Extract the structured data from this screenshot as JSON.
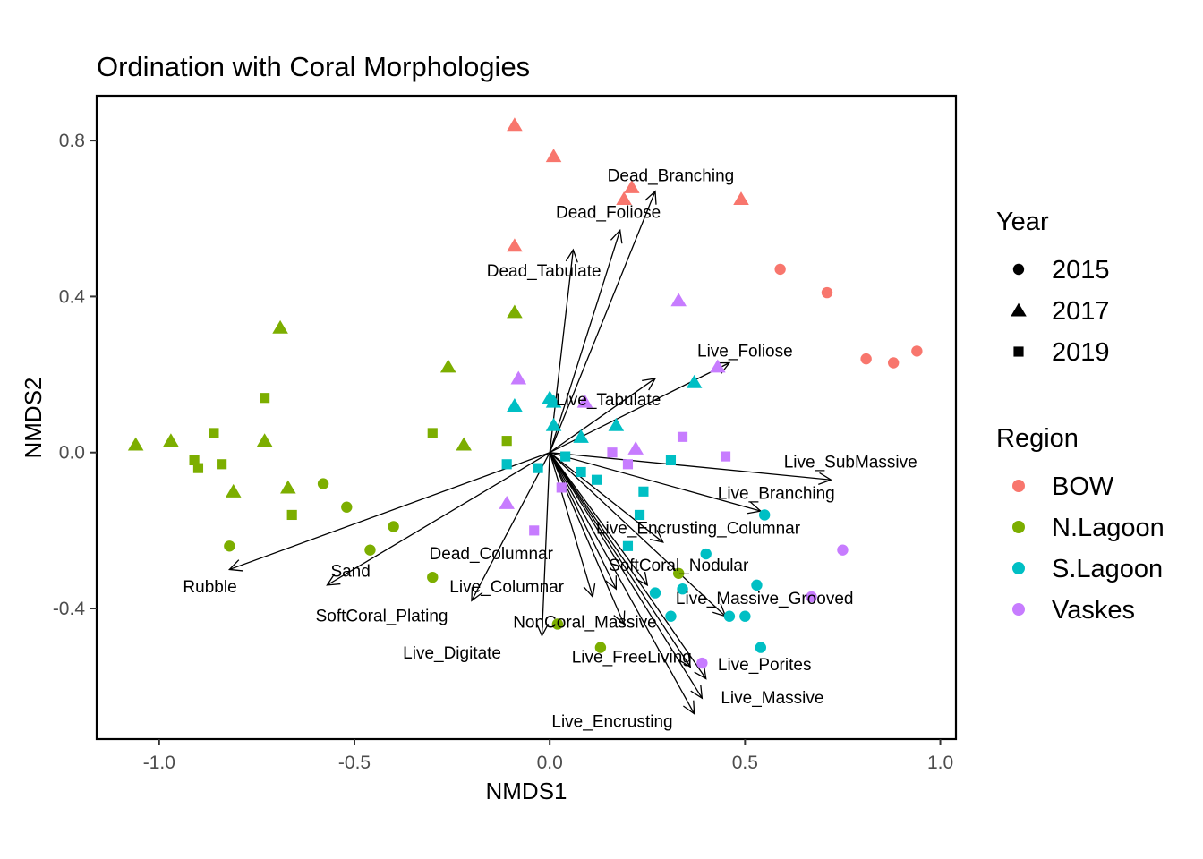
{
  "chart_data": {
    "type": "scatter",
    "title": "Ordination with Coral Morphologies",
    "xlabel": "NMDS1",
    "ylabel": "NMDS2",
    "xlim": [
      -1.16,
      1.04
    ],
    "ylim": [
      -0.735,
      0.915
    ],
    "xticks": [
      -1.0,
      -0.5,
      0.0,
      0.5,
      1.0
    ],
    "xtick_labels": [
      "-1.0",
      "-0.5",
      "0.0",
      "0.5",
      "1.0"
    ],
    "yticks": [
      -0.4,
      0.0,
      0.4,
      0.8
    ],
    "ytick_labels": [
      "-0.4",
      "0.0",
      "0.4",
      "0.8"
    ],
    "grid": false,
    "legend_placement": "right",
    "legend": {
      "year": {
        "title": "Year",
        "items": [
          {
            "label": "2015",
            "shape": "circle"
          },
          {
            "label": "2017",
            "shape": "triangle"
          },
          {
            "label": "2019",
            "shape": "square"
          }
        ]
      },
      "region": {
        "title": "Region",
        "items": [
          {
            "label": "BOW",
            "color": "#F8766D"
          },
          {
            "label": "N.Lagoon",
            "color": "#7CAE00"
          },
          {
            "label": "S.Lagoon",
            "color": "#00BFC4"
          },
          {
            "label": "Vaskes",
            "color": "#C77CFF"
          }
        ]
      }
    },
    "points": [
      {
        "x": 0.59,
        "y": 0.47,
        "year": "2015",
        "region": "BOW"
      },
      {
        "x": 0.71,
        "y": 0.41,
        "year": "2015",
        "region": "BOW"
      },
      {
        "x": 0.81,
        "y": 0.24,
        "year": "2015",
        "region": "BOW"
      },
      {
        "x": 0.88,
        "y": 0.23,
        "year": "2015",
        "region": "BOW"
      },
      {
        "x": 0.94,
        "y": 0.26,
        "year": "2015",
        "region": "BOW"
      },
      {
        "x": -0.09,
        "y": 0.84,
        "year": "2017",
        "region": "BOW"
      },
      {
        "x": 0.01,
        "y": 0.76,
        "year": "2017",
        "region": "BOW"
      },
      {
        "x": 0.21,
        "y": 0.68,
        "year": "2017",
        "region": "BOW"
      },
      {
        "x": 0.19,
        "y": 0.65,
        "year": "2017",
        "region": "BOW"
      },
      {
        "x": 0.49,
        "y": 0.65,
        "year": "2017",
        "region": "BOW"
      },
      {
        "x": -0.09,
        "y": 0.53,
        "year": "2017",
        "region": "BOW"
      },
      {
        "x": -0.58,
        "y": -0.08,
        "year": "2015",
        "region": "N.Lagoon"
      },
      {
        "x": -0.52,
        "y": -0.14,
        "year": "2015",
        "region": "N.Lagoon"
      },
      {
        "x": -0.4,
        "y": -0.19,
        "year": "2015",
        "region": "N.Lagoon"
      },
      {
        "x": -0.46,
        "y": -0.25,
        "year": "2015",
        "region": "N.Lagoon"
      },
      {
        "x": -0.82,
        "y": -0.24,
        "year": "2015",
        "region": "N.Lagoon"
      },
      {
        "x": -0.3,
        "y": -0.32,
        "year": "2015",
        "region": "N.Lagoon"
      },
      {
        "x": 0.33,
        "y": -0.31,
        "year": "2015",
        "region": "N.Lagoon"
      },
      {
        "x": 0.02,
        "y": -0.44,
        "year": "2015",
        "region": "N.Lagoon"
      },
      {
        "x": 0.13,
        "y": -0.5,
        "year": "2015",
        "region": "N.Lagoon"
      },
      {
        "x": -1.06,
        "y": 0.02,
        "year": "2017",
        "region": "N.Lagoon"
      },
      {
        "x": -0.97,
        "y": 0.03,
        "year": "2017",
        "region": "N.Lagoon"
      },
      {
        "x": -0.81,
        "y": -0.1,
        "year": "2017",
        "region": "N.Lagoon"
      },
      {
        "x": -0.73,
        "y": 0.03,
        "year": "2017",
        "region": "N.Lagoon"
      },
      {
        "x": -0.69,
        "y": 0.32,
        "year": "2017",
        "region": "N.Lagoon"
      },
      {
        "x": -0.67,
        "y": -0.09,
        "year": "2017",
        "region": "N.Lagoon"
      },
      {
        "x": -0.26,
        "y": 0.22,
        "year": "2017",
        "region": "N.Lagoon"
      },
      {
        "x": -0.22,
        "y": 0.02,
        "year": "2017",
        "region": "N.Lagoon"
      },
      {
        "x": -0.09,
        "y": 0.36,
        "year": "2017",
        "region": "N.Lagoon"
      },
      {
        "x": -0.73,
        "y": 0.14,
        "year": "2019",
        "region": "N.Lagoon"
      },
      {
        "x": -0.86,
        "y": 0.05,
        "year": "2019",
        "region": "N.Lagoon"
      },
      {
        "x": -0.91,
        "y": -0.02,
        "year": "2019",
        "region": "N.Lagoon"
      },
      {
        "x": -0.9,
        "y": -0.04,
        "year": "2019",
        "region": "N.Lagoon"
      },
      {
        "x": -0.84,
        "y": -0.03,
        "year": "2019",
        "region": "N.Lagoon"
      },
      {
        "x": -0.66,
        "y": -0.16,
        "year": "2019",
        "region": "N.Lagoon"
      },
      {
        "x": -0.3,
        "y": 0.05,
        "year": "2019",
        "region": "N.Lagoon"
      },
      {
        "x": -0.11,
        "y": 0.03,
        "year": "2019",
        "region": "N.Lagoon"
      },
      {
        "x": 0.55,
        "y": -0.16,
        "year": "2015",
        "region": "S.Lagoon"
      },
      {
        "x": 0.4,
        "y": -0.26,
        "year": "2015",
        "region": "S.Lagoon"
      },
      {
        "x": 0.27,
        "y": -0.36,
        "year": "2015",
        "region": "S.Lagoon"
      },
      {
        "x": 0.34,
        "y": -0.35,
        "year": "2015",
        "region": "S.Lagoon"
      },
      {
        "x": 0.53,
        "y": -0.34,
        "year": "2015",
        "region": "S.Lagoon"
      },
      {
        "x": 0.46,
        "y": -0.42,
        "year": "2015",
        "region": "S.Lagoon"
      },
      {
        "x": 0.5,
        "y": -0.42,
        "year": "2015",
        "region": "S.Lagoon"
      },
      {
        "x": 0.31,
        "y": -0.42,
        "year": "2015",
        "region": "S.Lagoon"
      },
      {
        "x": 0.54,
        "y": -0.5,
        "year": "2015",
        "region": "S.Lagoon"
      },
      {
        "x": -0.09,
        "y": 0.12,
        "year": "2017",
        "region": "S.Lagoon"
      },
      {
        "x": 0.0,
        "y": 0.14,
        "year": "2017",
        "region": "S.Lagoon"
      },
      {
        "x": 0.01,
        "y": 0.13,
        "year": "2017",
        "region": "S.Lagoon"
      },
      {
        "x": 0.01,
        "y": 0.07,
        "year": "2017",
        "region": "S.Lagoon"
      },
      {
        "x": 0.08,
        "y": 0.04,
        "year": "2017",
        "region": "S.Lagoon"
      },
      {
        "x": 0.17,
        "y": 0.07,
        "year": "2017",
        "region": "S.Lagoon"
      },
      {
        "x": 0.37,
        "y": 0.18,
        "year": "2017",
        "region": "S.Lagoon"
      },
      {
        "x": -0.11,
        "y": -0.03,
        "year": "2019",
        "region": "S.Lagoon"
      },
      {
        "x": -0.03,
        "y": -0.04,
        "year": "2019",
        "region": "S.Lagoon"
      },
      {
        "x": 0.04,
        "y": -0.01,
        "year": "2019",
        "region": "S.Lagoon"
      },
      {
        "x": 0.08,
        "y": -0.05,
        "year": "2019",
        "region": "S.Lagoon"
      },
      {
        "x": 0.12,
        "y": -0.07,
        "year": "2019",
        "region": "S.Lagoon"
      },
      {
        "x": 0.24,
        "y": -0.1,
        "year": "2019",
        "region": "S.Lagoon"
      },
      {
        "x": 0.31,
        "y": -0.02,
        "year": "2019",
        "region": "S.Lagoon"
      },
      {
        "x": 0.23,
        "y": -0.16,
        "year": "2019",
        "region": "S.Lagoon"
      },
      {
        "x": 0.2,
        "y": -0.24,
        "year": "2019",
        "region": "S.Lagoon"
      },
      {
        "x": 0.67,
        "y": -0.37,
        "year": "2015",
        "region": "Vaskes"
      },
      {
        "x": 0.75,
        "y": -0.25,
        "year": "2015",
        "region": "Vaskes"
      },
      {
        "x": 0.39,
        "y": -0.54,
        "year": "2015",
        "region": "Vaskes"
      },
      {
        "x": -0.08,
        "y": 0.19,
        "year": "2017",
        "region": "Vaskes"
      },
      {
        "x": 0.09,
        "y": 0.13,
        "year": "2017",
        "region": "Vaskes"
      },
      {
        "x": 0.22,
        "y": 0.01,
        "year": "2017",
        "region": "Vaskes"
      },
      {
        "x": 0.33,
        "y": 0.39,
        "year": "2017",
        "region": "Vaskes"
      },
      {
        "x": 0.43,
        "y": 0.22,
        "year": "2017",
        "region": "Vaskes"
      },
      {
        "x": -0.11,
        "y": -0.13,
        "year": "2017",
        "region": "Vaskes"
      },
      {
        "x": 0.16,
        "y": 0.0,
        "year": "2019",
        "region": "Vaskes"
      },
      {
        "x": 0.2,
        "y": -0.03,
        "year": "2019",
        "region": "Vaskes"
      },
      {
        "x": 0.34,
        "y": 0.04,
        "year": "2019",
        "region": "Vaskes"
      },
      {
        "x": 0.45,
        "y": -0.01,
        "year": "2019",
        "region": "Vaskes"
      },
      {
        "x": 0.03,
        "y": -0.09,
        "year": "2019",
        "region": "Vaskes"
      },
      {
        "x": -0.04,
        "y": -0.2,
        "year": "2019",
        "region": "Vaskes"
      }
    ],
    "vectors": [
      {
        "label": "Dead_Branching",
        "x": 0.27,
        "y": 0.67,
        "lx": 0.31,
        "ly": 0.71
      },
      {
        "label": "Dead_Foliose",
        "x": 0.18,
        "y": 0.57,
        "lx": 0.15,
        "ly": 0.615
      },
      {
        "label": "Dead_Tabulate",
        "x": 0.06,
        "y": 0.52,
        "lx": -0.015,
        "ly": 0.465
      },
      {
        "label": "Live_Foliose",
        "x": 0.46,
        "y": 0.23,
        "lx": 0.5,
        "ly": 0.26
      },
      {
        "label": "Live_Tabulate",
        "x": 0.27,
        "y": 0.19,
        "lx": 0.15,
        "ly": 0.135
      },
      {
        "label": "Live_SubMassive",
        "x": 0.72,
        "y": -0.07,
        "lx": 0.77,
        "ly": -0.025
      },
      {
        "label": "Live_Branching",
        "x": 0.54,
        "y": -0.15,
        "lx": 0.58,
        "ly": -0.105
      },
      {
        "label": "Live_Encrusting_Columnar",
        "x": 0.29,
        "y": -0.23,
        "lx": 0.38,
        "ly": -0.195
      },
      {
        "label": "SoftCoral_Nodular",
        "x": 0.25,
        "y": -0.34,
        "lx": 0.33,
        "ly": -0.29
      },
      {
        "label": "Live_Massive_Grooved",
        "x": 0.45,
        "y": -0.42,
        "lx": 0.55,
        "ly": -0.375
      },
      {
        "label": "Dead_Columnar",
        "x": 0.17,
        "y": -0.35,
        "lx": -0.15,
        "ly": -0.26
      },
      {
        "label": "Live_Columnar",
        "x": 0.11,
        "y": -0.37,
        "lx": -0.11,
        "ly": -0.345
      },
      {
        "label": "NonCoral_Massive",
        "x": 0.19,
        "y": -0.44,
        "lx": 0.09,
        "ly": -0.435
      },
      {
        "label": "Live_FreeLiving",
        "x": 0.36,
        "y": -0.55,
        "lx": 0.21,
        "ly": -0.525
      },
      {
        "label": "Live_Porites",
        "x": 0.4,
        "y": -0.58,
        "lx": 0.55,
        "ly": -0.545
      },
      {
        "label": "Live_Massive",
        "x": 0.39,
        "y": -0.63,
        "lx": 0.57,
        "ly": -0.63
      },
      {
        "label": "Live_Encrusting",
        "x": 0.37,
        "y": -0.67,
        "lx": 0.16,
        "ly": -0.69
      },
      {
        "label": "Live_Digitate",
        "x": -0.02,
        "y": -0.47,
        "lx": -0.25,
        "ly": -0.515
      },
      {
        "label": "SoftCoral_Plating",
        "x": -0.2,
        "y": -0.38,
        "lx": -0.43,
        "ly": -0.42
      },
      {
        "label": "Sand",
        "x": -0.57,
        "y": -0.34,
        "lx": -0.51,
        "ly": -0.305
      },
      {
        "label": "Rubble",
        "x": -0.82,
        "y": -0.3,
        "lx": -0.87,
        "ly": -0.345
      }
    ]
  }
}
